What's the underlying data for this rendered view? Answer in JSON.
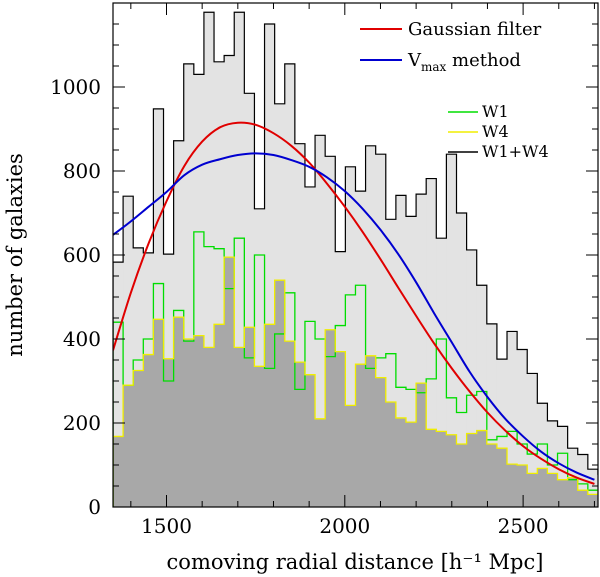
{
  "chart_data": {
    "type": "histogram",
    "xlabel": "comoving radial distance [h⁻¹ Mpc]",
    "ylabel": "number of galaxies",
    "xlim": [
      1350,
      2710
    ],
    "ylim": [
      0,
      1200
    ],
    "x_ticks": [
      1500,
      2000,
      2500
    ],
    "y_ticks": [
      0,
      200,
      400,
      600,
      800,
      1000
    ],
    "bin_start": 1350,
    "bin_width": 28.33,
    "series": [
      {
        "name": "W1+W4",
        "color": "#000000",
        "fill": "#e3e3e3",
        "values": [
          583,
          740,
          617,
          605,
          948,
          602,
          872,
          1055,
          1030,
          1178,
          1060,
          1075,
          1178,
          985,
          710,
          1150,
          960,
          1055,
          865,
          762,
          885,
          835,
          608,
          810,
          752,
          860,
          840,
          685,
          742,
          692,
          745,
          782,
          640,
          840,
          700,
          612,
          528,
          436,
          352,
          418,
          375,
          318,
          247,
          205,
          192,
          140,
          125,
          90,
          78
        ]
      },
      {
        "name": "W1",
        "color": "#00dd00",
        "values": [
          440,
          290,
          350,
          400,
          532,
          300,
          468,
          395,
          655,
          620,
          615,
          520,
          640,
          355,
          600,
          330,
          412,
          510,
          280,
          442,
          400,
          358,
          432,
          505,
          528,
          330,
          355,
          365,
          285,
          280,
          272,
          305,
          400,
          260,
          225,
          266,
          275,
          160,
          168,
          180,
          150,
          126,
          150,
          100,
          128,
          65,
          55,
          40,
          40
        ]
      },
      {
        "name": "W4",
        "color": "#f0ee00",
        "values": [
          168,
          290,
          325,
          363,
          447,
          353,
          452,
          400,
          408,
          380,
          435,
          595,
          380,
          428,
          335,
          435,
          540,
          395,
          345,
          315,
          210,
          422,
          370,
          242,
          340,
          360,
          308,
          250,
          212,
          202,
          295,
          185,
          180,
          172,
          150,
          175,
          182,
          150,
          140,
          102,
          100,
          80,
          92,
          80,
          65,
          70,
          40,
          30,
          40
        ]
      },
      {
        "name": "Gaussian filter",
        "color": "#e00000",
        "type": "line",
        "x": [
          1350,
          1400,
          1450,
          1500,
          1550,
          1600,
          1650,
          1700,
          1750,
          1800,
          1850,
          1900,
          1950,
          2000,
          2050,
          2100,
          2150,
          2200,
          2250,
          2300,
          2350,
          2400,
          2450,
          2500,
          2550,
          2600,
          2650,
          2700
        ],
        "y": [
          373,
          510,
          628,
          728,
          812,
          870,
          904,
          915,
          910,
          890,
          860,
          820,
          770,
          715,
          655,
          590,
          522,
          455,
          390,
          330,
          275,
          225,
          182,
          145,
          115,
          90,
          70,
          55
        ]
      },
      {
        "name": "V_max method",
        "color": "#0000d0",
        "type": "line",
        "x": [
          1350,
          1400,
          1450,
          1500,
          1550,
          1600,
          1650,
          1700,
          1750,
          1800,
          1850,
          1900,
          1950,
          2000,
          2050,
          2100,
          2150,
          2200,
          2250,
          2300,
          2350,
          2400,
          2450,
          2500,
          2550,
          2600,
          2650,
          2700
        ],
        "y": [
          648,
          680,
          715,
          750,
          790,
          815,
          828,
          838,
          842,
          838,
          826,
          810,
          785,
          752,
          710,
          660,
          602,
          535,
          462,
          392,
          322,
          262,
          210,
          168,
          132,
          104,
          82,
          65
        ]
      }
    ],
    "legend_top": [
      {
        "label": "Gaussian filter",
        "color": "#e00000"
      },
      {
        "label": "V",
        "sub": "max",
        "suffix": " method",
        "color": "#0000d0"
      }
    ],
    "legend_hist": [
      {
        "label": "W1",
        "color": "#00dd00"
      },
      {
        "label": "W4",
        "color": "#f0ee00"
      },
      {
        "label": "W1+W4",
        "color": "#000000"
      }
    ]
  }
}
